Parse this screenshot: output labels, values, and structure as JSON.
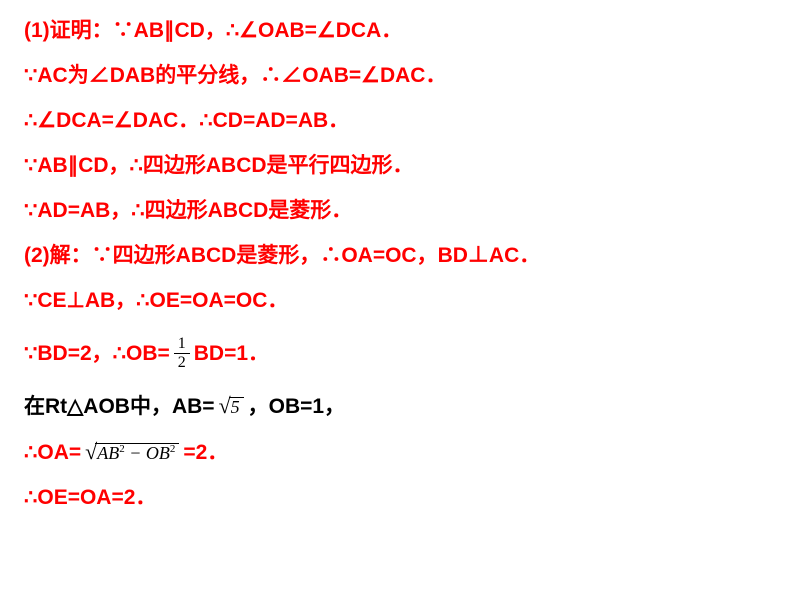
{
  "colors": {
    "primary": "#ff0000",
    "secondary": "#000000",
    "background": "#ffffff"
  },
  "typography": {
    "main_fontsize": 21,
    "main_fontweight": "bold",
    "math_fontfamily": "Times New Roman"
  },
  "lines": {
    "l1": "(1)证明：∵AB∥CD，∴∠OAB=∠DCA．",
    "l2": "∵AC为∠DAB的平分线，∴∠OAB=∠DAC．",
    "l3": "∴∠DCA=∠DAC．∴CD=AD=AB．",
    "l4": "∵AB∥CD，∴四边形ABCD是平行四边形．",
    "l5": "∵AD=AB，∴四边形ABCD是菱形．",
    "l6": "(2)解：∵四边形ABCD是菱形，∴OA=OC，BD⊥AC．",
    "l7": "∵CE⊥AB，∴OE=OA=OC．",
    "l8a": "∵BD=2，∴OB=",
    "l8b": "BD=1．",
    "l9a": "在Rt△AOB中，AB=",
    "l9b": "，OB=1，",
    "l10a": "∴OA=",
    "l10b": "=2．",
    "l11": "∴OE=OA=2．"
  },
  "math": {
    "frac1": {
      "num": "1",
      "den": "2"
    },
    "sqrt5": "5",
    "sqrtExpr": {
      "a": "AB",
      "aexp": "2",
      "op": " − ",
      "b": "OB",
      "bexp": "2"
    }
  }
}
